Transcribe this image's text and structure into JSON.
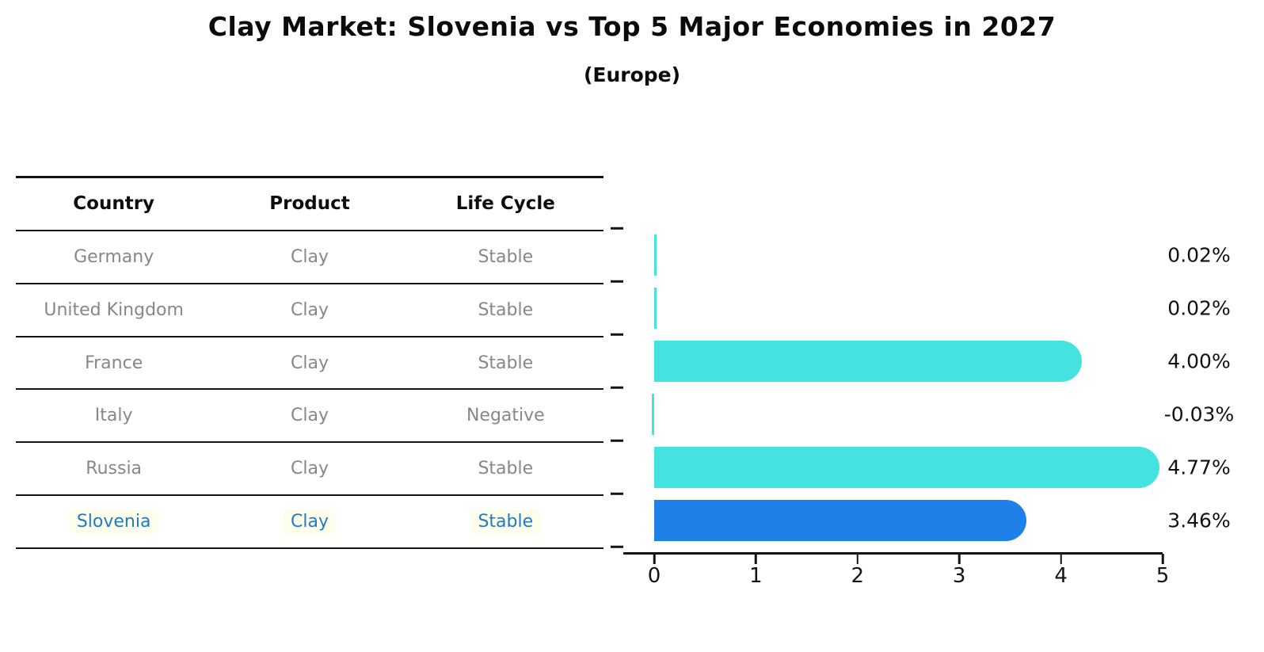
{
  "title": "Clay Market: Slovenia vs Top 5 Major Economies in 2027",
  "subtitle": "(Europe)",
  "table": {
    "headers": [
      "Country",
      "Product",
      "Life Cycle"
    ],
    "rows": [
      {
        "country": "Germany",
        "product": "Clay",
        "life_cycle": "Stable",
        "highlight": false
      },
      {
        "country": "United Kingdom",
        "product": "Clay",
        "life_cycle": "Stable",
        "highlight": false
      },
      {
        "country": "France",
        "product": "Clay",
        "life_cycle": "Stable",
        "highlight": false
      },
      {
        "country": "Italy",
        "product": "Clay",
        "life_cycle": "Negative",
        "highlight": false
      },
      {
        "country": "Russia",
        "product": "Clay",
        "life_cycle": "Stable",
        "highlight": false
      },
      {
        "country": "Slovenia",
        "product": "Clay",
        "life_cycle": "Stable",
        "highlight": true
      }
    ]
  },
  "chart_data": {
    "type": "bar",
    "orientation": "horizontal",
    "categories": [
      "Germany",
      "United Kingdom",
      "France",
      "Italy",
      "Russia",
      "Slovenia"
    ],
    "values": [
      0.02,
      0.02,
      4.0,
      -0.03,
      4.77,
      3.46
    ],
    "value_labels": [
      "0.02%",
      "0.02%",
      "4.00%",
      "-0.03%",
      "4.77%",
      "3.46%"
    ],
    "x_ticks": [
      "0",
      "1",
      "2",
      "3",
      "4",
      "5"
    ],
    "xlim": [
      0,
      5
    ],
    "grid": "off",
    "legend": "none",
    "bar_color": "#45e3e0",
    "highlight_color": "#1f80e8",
    "highlight_index": 5,
    "highlight_style": "dotted-border"
  }
}
